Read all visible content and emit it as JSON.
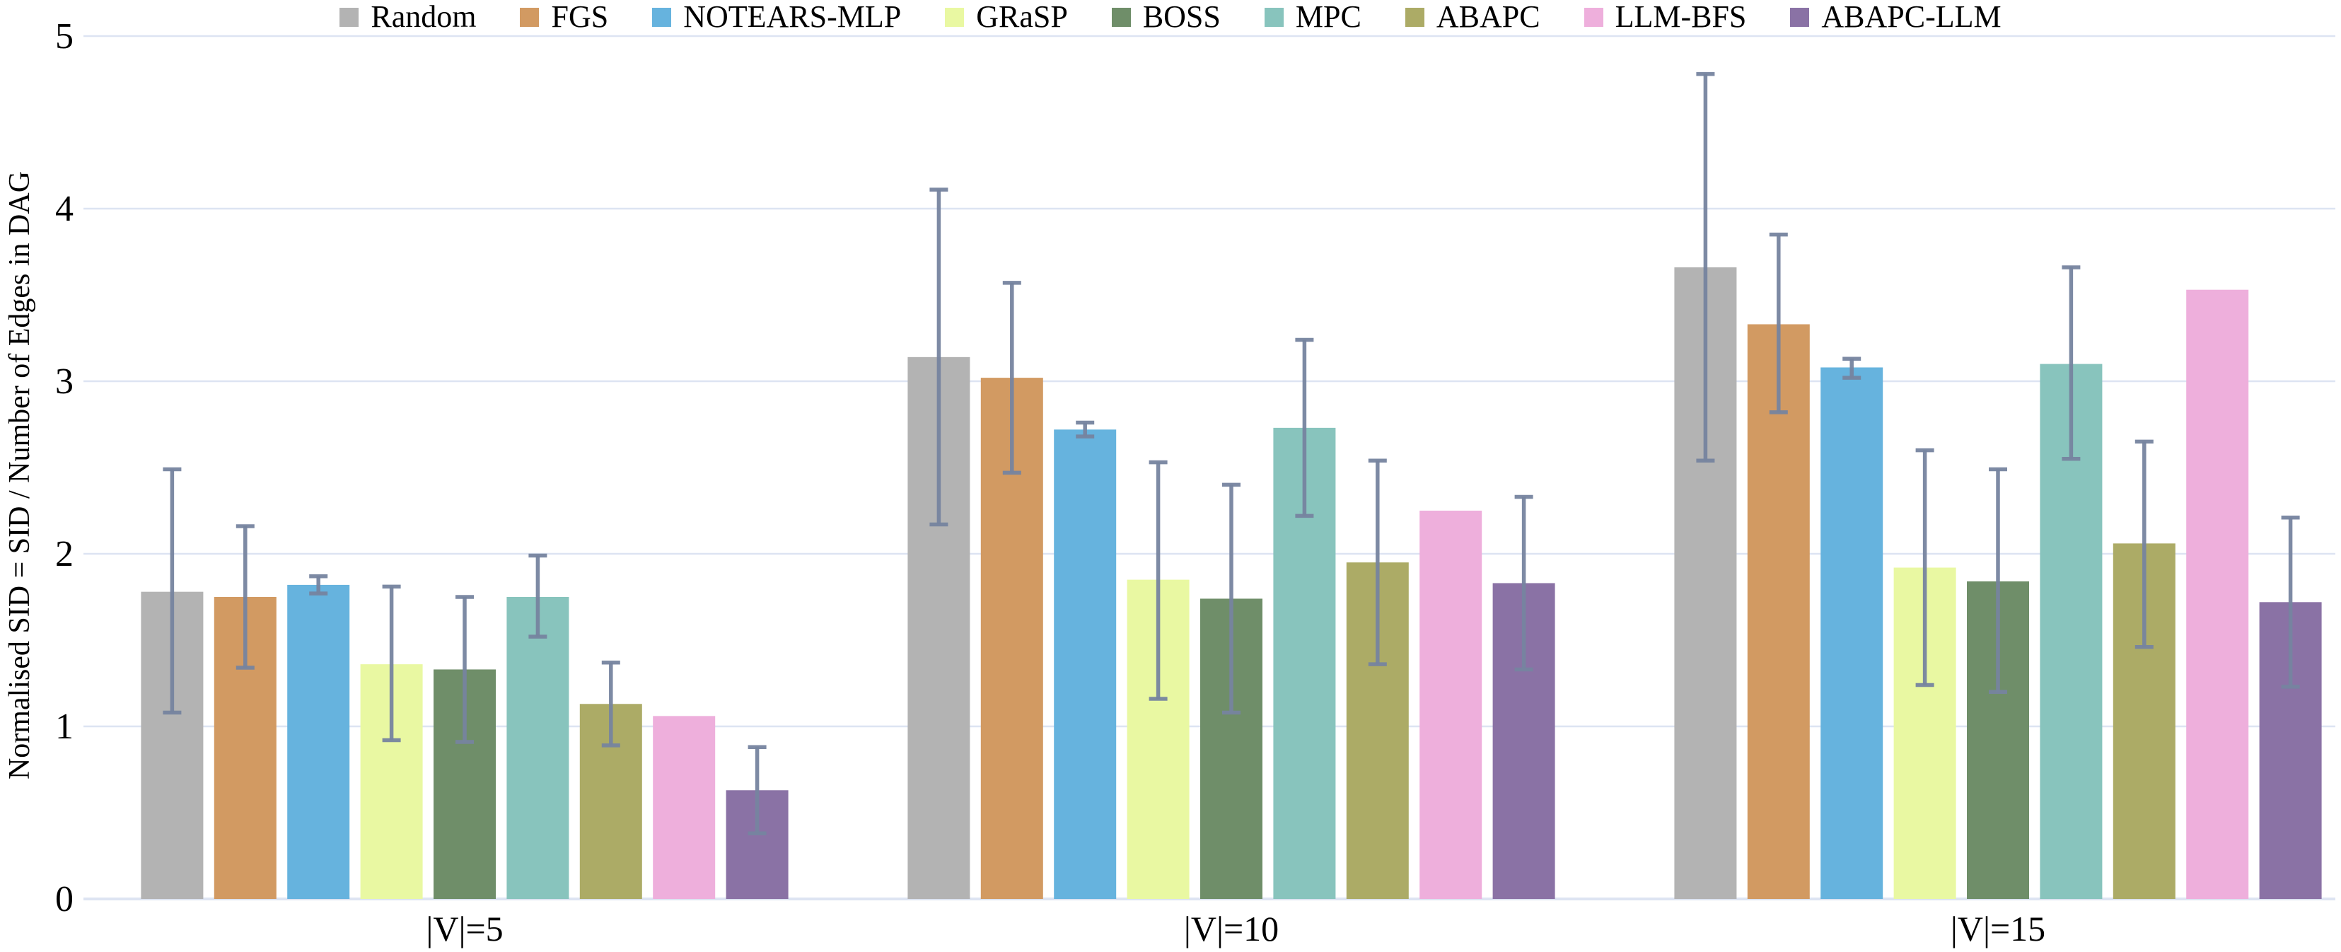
{
  "figure": {
    "background": "#ffffff",
    "grid_color": "#dde4f2",
    "axis_line_color": "#dde4f2",
    "error_bar_color": "#76849f",
    "text_color": "#000000"
  },
  "chart_data": {
    "type": "bar",
    "title": "",
    "xlabel": "",
    "ylabel": "Normalised SID = SID / Number of Edges in DAG",
    "categories": [
      "|V|=5",
      "|V|=10",
      "|V|=15"
    ],
    "ylim": [
      0,
      5
    ],
    "yticks": [
      "0",
      "1",
      "2",
      "3",
      "4",
      "5"
    ],
    "grid": "horizontal",
    "legend_position": "top",
    "series": [
      {
        "name": "Random",
        "color": "#b3b3b3",
        "values": [
          1.78,
          3.14,
          3.66
        ],
        "err_low": [
          1.08,
          2.17,
          2.54
        ],
        "err_high": [
          2.49,
          4.11,
          4.78
        ]
      },
      {
        "name": "FGS",
        "color": "#d29a62",
        "values": [
          1.75,
          3.02,
          3.33
        ],
        "err_low": [
          1.34,
          2.47,
          2.82
        ],
        "err_high": [
          2.16,
          3.57,
          3.85
        ]
      },
      {
        "name": "NOTEARS-MLP",
        "color": "#66b3de",
        "values": [
          1.82,
          2.72,
          3.08
        ],
        "err_low": [
          1.77,
          2.68,
          3.02
        ],
        "err_high": [
          1.87,
          2.76,
          3.13
        ]
      },
      {
        "name": "GRaSP",
        "color": "#e9f8a2",
        "values": [
          1.36,
          1.85,
          1.92
        ],
        "err_low": [
          0.92,
          1.16,
          1.24
        ],
        "err_high": [
          1.81,
          2.53,
          2.6
        ]
      },
      {
        "name": "BOSS",
        "color": "#6f8e69",
        "values": [
          1.33,
          1.74,
          1.84
        ],
        "err_low": [
          0.91,
          1.08,
          1.2
        ],
        "err_high": [
          1.75,
          2.4,
          2.49
        ]
      },
      {
        "name": "MPC",
        "color": "#88c4bd",
        "values": [
          1.75,
          2.73,
          3.1
        ],
        "err_low": [
          1.52,
          2.22,
          2.55
        ],
        "err_high": [
          1.99,
          3.24,
          3.66
        ]
      },
      {
        "name": "ABAPC",
        "color": "#acab66",
        "values": [
          1.13,
          1.95,
          2.06
        ],
        "err_low": [
          0.89,
          1.36,
          1.46
        ],
        "err_high": [
          1.37,
          2.54,
          2.65
        ]
      },
      {
        "name": "LLM-BFS",
        "color": "#eeafdc",
        "values": [
          1.06,
          2.25,
          3.53
        ],
        "err_low": [
          null,
          null,
          null
        ],
        "err_high": [
          null,
          null,
          null
        ]
      },
      {
        "name": "ABAPC-LLM",
        "color": "#8a72a5",
        "values": [
          0.63,
          1.83,
          1.72
        ],
        "err_low": [
          0.38,
          1.33,
          1.23
        ],
        "err_high": [
          0.88,
          2.33,
          2.21
        ]
      }
    ]
  }
}
